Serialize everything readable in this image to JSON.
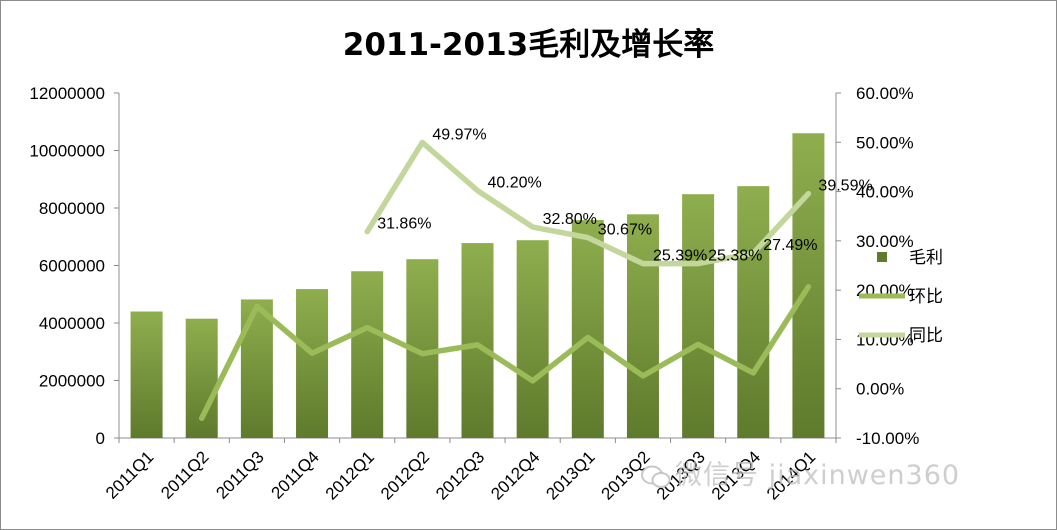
{
  "chart_data": {
    "type": "bar",
    "title": "2011-2013毛利及增长率",
    "categories": [
      "2011Q1",
      "2011Q2",
      "2011Q3",
      "2011Q4",
      "2012Q1",
      "2012Q2",
      "2012Q3",
      "2012Q4",
      "2013Q1",
      "2013Q2",
      "2013Q3",
      "2013Q4",
      "2014Q1"
    ],
    "y_left": {
      "ylim": [
        0,
        12000000
      ],
      "ticks": [
        "0",
        "2000000",
        "4000000",
        "6000000",
        "8000000",
        "10000000",
        "12000000"
      ]
    },
    "y_right": {
      "ylim": [
        -10,
        60
      ],
      "ticks": [
        "-10.00%",
        "0.00%",
        "10.00%",
        "20.00%",
        "30.00%",
        "40.00%",
        "50.00%",
        "60.00%"
      ]
    },
    "series": [
      {
        "name": "毛利",
        "kind": "bar",
        "axis": "left",
        "color": "#77933c",
        "values": [
          4400000,
          4150000,
          4820000,
          5180000,
          5800000,
          6220000,
          6780000,
          6880000,
          7580000,
          7780000,
          8480000,
          8760000,
          10600000
        ]
      },
      {
        "name": "环比",
        "kind": "line",
        "axis": "right",
        "color": "#9bbb59",
        "values": [
          null,
          -6.0,
          16.7,
          7.2,
          12.4,
          7.1,
          8.9,
          1.6,
          10.4,
          2.6,
          9.0,
          3.2,
          20.7
        ]
      },
      {
        "name": "同比",
        "kind": "line",
        "axis": "right",
        "color": "#c3d69b",
        "values": [
          null,
          null,
          null,
          null,
          31.86,
          49.97,
          40.2,
          32.8,
          30.67,
          25.39,
          25.38,
          27.49,
          39.59
        ],
        "data_labels": [
          null,
          null,
          null,
          null,
          "31.86%",
          "49.97%",
          "40.20%",
          "32.80%",
          "30.67%",
          "25.39%",
          "25.38%",
          "27.49%",
          "39.59%"
        ]
      }
    ],
    "legend": "right",
    "grid": false
  },
  "watermark": "微信号 jiaxinwen360",
  "colors": {
    "bar_top": "#8fae4e",
    "bar_bottom": "#5e7a2c",
    "axis": "#8c8c8c"
  }
}
